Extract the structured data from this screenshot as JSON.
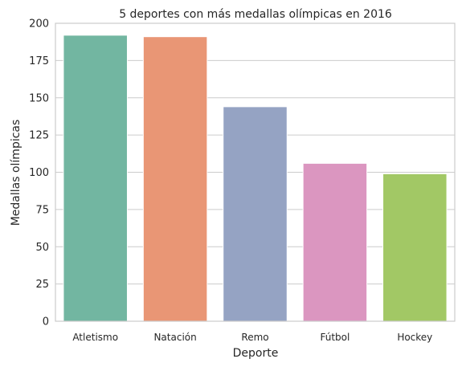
{
  "chart_data": {
    "type": "bar",
    "title": "5 deportes con más medallas olímpicas en 2016",
    "xlabel": "Deporte",
    "ylabel": "Medallas olímpicas",
    "categories": [
      "Atletismo",
      "Natación",
      "Remo",
      "Fútbol",
      "Hockey"
    ],
    "values": [
      192,
      191,
      144,
      106,
      99
    ],
    "colors": [
      "#72b6a1",
      "#e99675",
      "#95a3c3",
      "#db96c0",
      "#a2c865"
    ],
    "ylim": [
      0,
      200
    ],
    "yticks": [
      0,
      25,
      50,
      75,
      100,
      125,
      150,
      175,
      200
    ],
    "grid": "horizontal"
  }
}
